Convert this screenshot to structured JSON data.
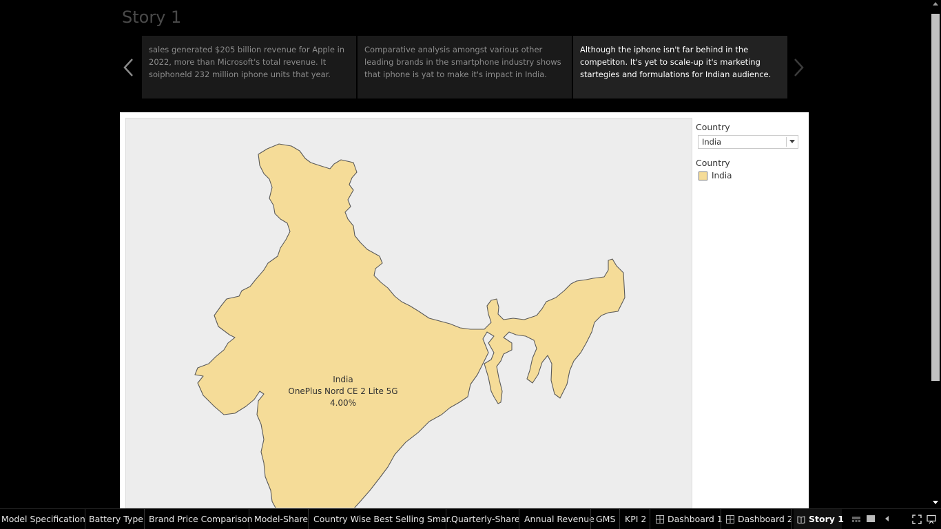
{
  "story": {
    "title": "Story 1",
    "points": [
      {
        "text": "sales generated $205 billion revenue for Apple in 2022, more than Microsoft's total revenue. It soiphoneld 232 million iphone units that year."
      },
      {
        "text": "Comparative analysis amongst various other leading brands in the smartphone industry shows that iphone is yat to make it's impact in India."
      },
      {
        "text": "Although the iphone isn't far behind in the competiton. It's yet to scale-up it's marketing startegies and formulations for Indian audience."
      }
    ]
  },
  "map": {
    "label_country": "India",
    "label_model": "OnePlus Nord CE 2 Lite 5G",
    "label_share": "4.00%",
    "fill_color": "#f5dc98",
    "background_color": "#ededed"
  },
  "filter": {
    "title": "Country",
    "selected": "India"
  },
  "legend": {
    "title": "Country",
    "items": [
      {
        "label": "India",
        "color": "#f5dc98"
      }
    ]
  },
  "tabs": [
    {
      "label": "Model Specification"
    },
    {
      "label": "Battery Type"
    },
    {
      "label": "Brand Price Comparison"
    },
    {
      "label": "Model-Share"
    },
    {
      "label": "Country Wise Best Selling Smar..."
    },
    {
      "label": "Quarterly-Share"
    },
    {
      "label": "Annual Revenue"
    },
    {
      "label": "GMS"
    },
    {
      "label": "KPI 2"
    },
    {
      "label": "Dashboard 1",
      "icon": "dashboard-icon"
    },
    {
      "label": "Dashboard 2",
      "icon": "dashboard-icon"
    },
    {
      "label": "Story 1",
      "icon": "story-icon",
      "active": true
    }
  ]
}
